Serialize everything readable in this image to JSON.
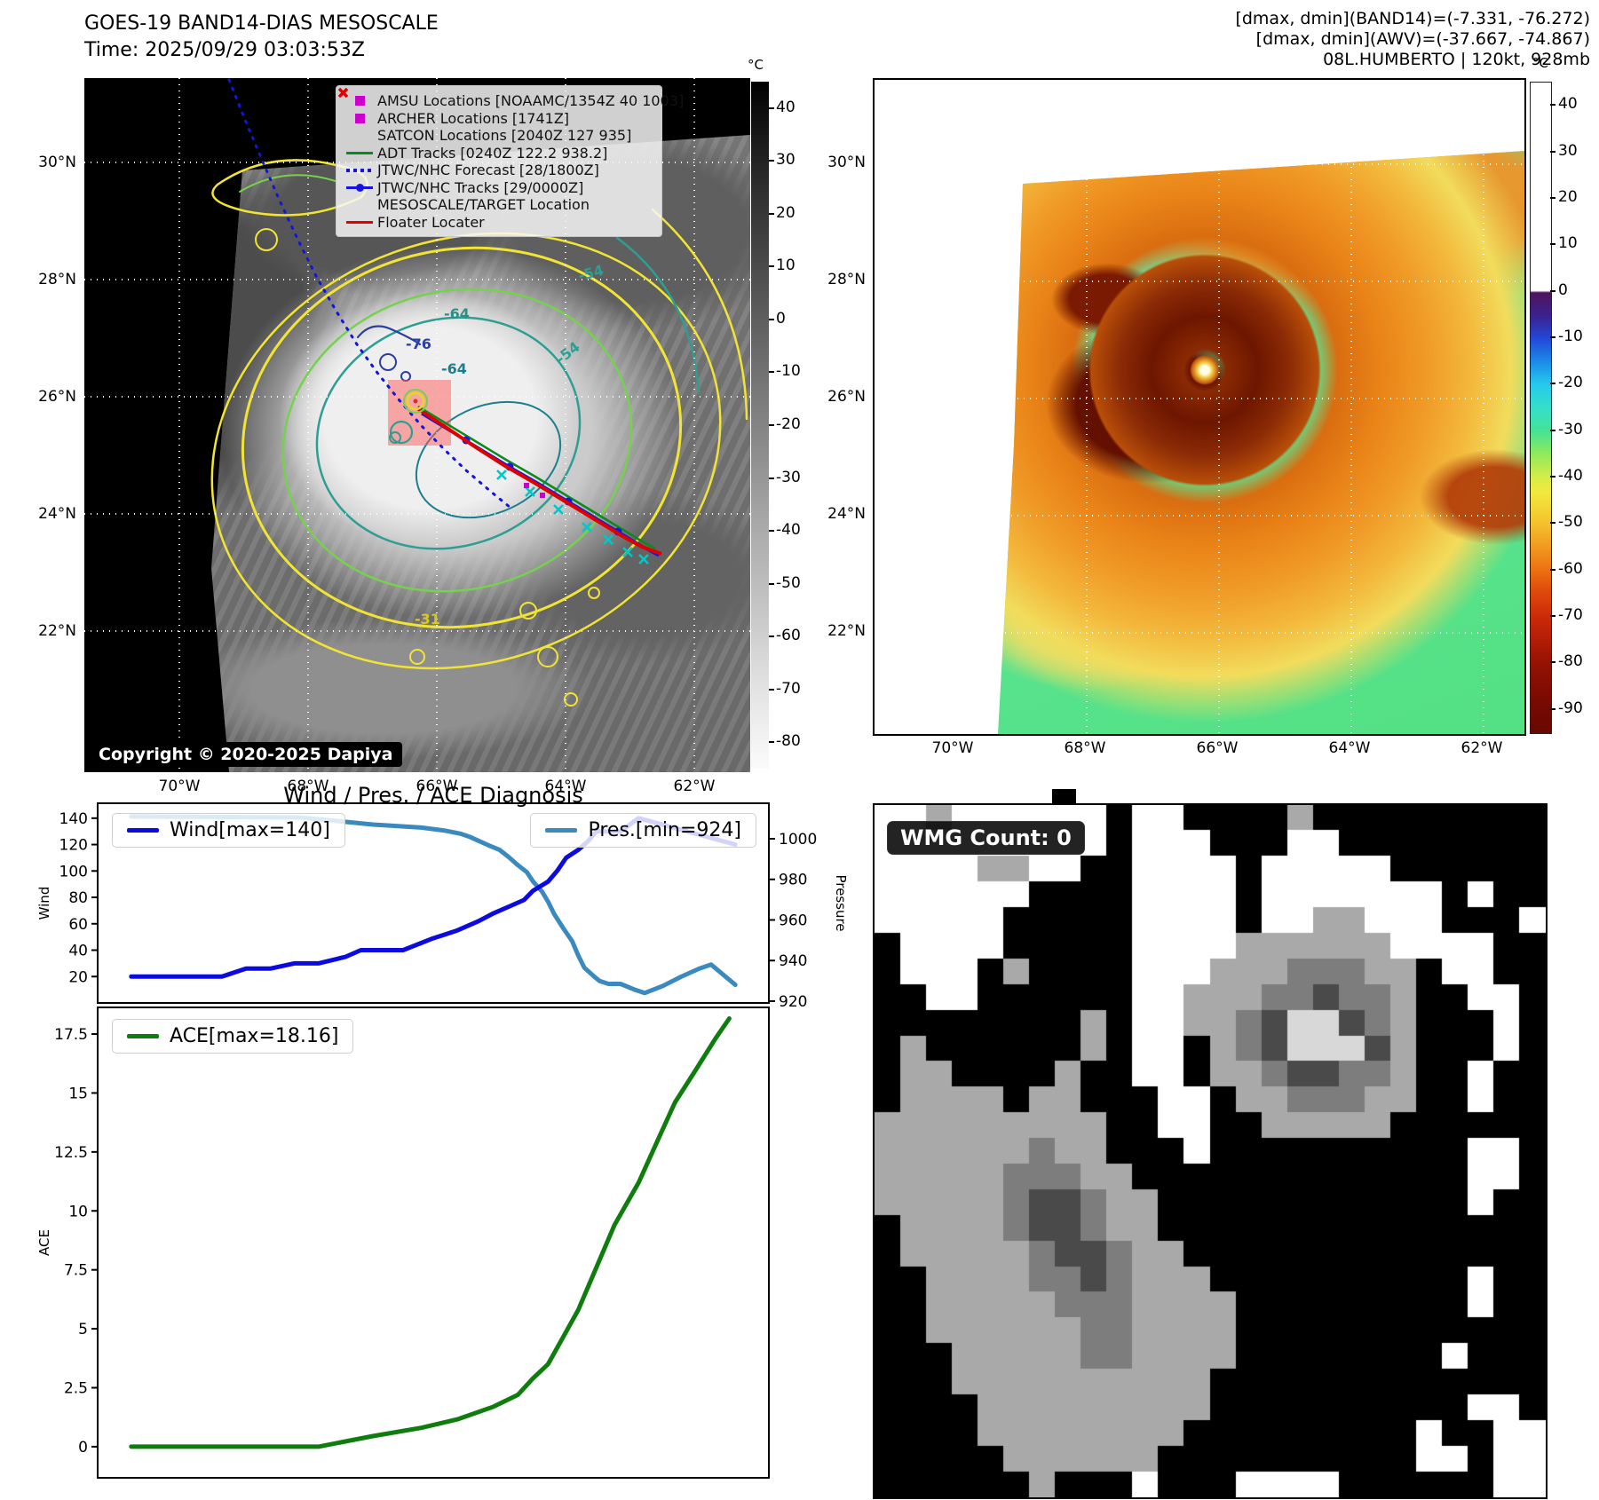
{
  "header": {
    "title_line1": "GOES-19 BAND14-DIAS MESOSCALE",
    "title_line2": "Time: 2025/09/29 03:03:53Z",
    "right_line1": "[dmax, dmin](BAND14)=(-7.331, -76.272)",
    "right_line2": "[dmax, dmin](AWV)=(-37.667, -74.867)",
    "right_line3": "08L.HUMBERTO | 120kt, 928mb"
  },
  "left_map": {
    "copyright": "Copyright © 2020-2025 Dapiya",
    "lat_labels": [
      "30°N",
      "28°N",
      "26°N",
      "24°N",
      "22°N"
    ],
    "lon_labels": [
      "70°W",
      "68°W",
      "66°W",
      "64°W",
      "62°W"
    ],
    "colorbar": {
      "unit": "°C",
      "ticks": [
        40,
        30,
        20,
        10,
        0,
        -10,
        -20,
        -30,
        -40,
        -50,
        -60,
        -70,
        -80
      ]
    },
    "legend": [
      {
        "marker": "magenta-square",
        "label": "AMSU Locations [NOAAMC/1354Z 40 1003]"
      },
      {
        "marker": "magenta-square",
        "label": "ARCHER Locations [1741Z]"
      },
      {
        "marker": "cyan-x",
        "label": "SATCON Locations [2040Z 127 935]"
      },
      {
        "marker": "green-line",
        "label": "ADT Tracks [0240Z 122.2 938.2]"
      },
      {
        "marker": "blue-dotted",
        "label": "JTWC/NHC Forecast [28/1800Z]"
      },
      {
        "marker": "blue-line-dot",
        "label": "JTWC/NHC Tracks [29/0000Z]"
      },
      {
        "marker": "red-x",
        "label": "MESOSCALE/TARGET Location"
      },
      {
        "marker": "red-line",
        "label": "Floater Locater"
      }
    ],
    "contour_labels": [
      "-64",
      "-76",
      "-64",
      "-54",
      "-54",
      "-31"
    ]
  },
  "right_map": {
    "lat_labels": [
      "30°N",
      "28°N",
      "26°N",
      "24°N",
      "22°N"
    ],
    "lon_labels": [
      "70°W",
      "68°W",
      "66°W",
      "64°W",
      "62°W"
    ],
    "colorbar": {
      "unit": "°C",
      "ticks": [
        40,
        30,
        20,
        10,
        0,
        -10,
        -20,
        -30,
        -40,
        -50,
        -60,
        -70,
        -80,
        -90
      ]
    }
  },
  "charts": {
    "title": "Wind / Pres. / ACE Diagnosis",
    "wind_legend": "Wind[max=140]",
    "pres_legend": "Pres.[min=924]",
    "ace_legend": "ACE[max=18.16]"
  },
  "chart_data": [
    {
      "type": "line",
      "title": "Wind / Pres. / ACE Diagnosis",
      "ylabel_left": "Wind",
      "ylabel_right": "Pressure",
      "yticks_left": [
        20,
        40,
        60,
        80,
        100,
        120,
        140
      ],
      "yticks_right": [
        920,
        940,
        960,
        980,
        1000
      ],
      "ylim_left": [
        0,
        151.3
      ],
      "ylim_right": [
        919.1,
        1017.5
      ],
      "series": [
        {
          "name": "Pres.[min=924]",
          "color": "#3a8ac0",
          "axis": "right",
          "points": [
            [
              0,
              1011
            ],
            [
              0.28,
              1010.5
            ],
            [
              0.35,
              1008.5
            ],
            [
              0.4,
              1007
            ],
            [
              0.43,
              1006.5
            ],
            [
              0.48,
              1005.5
            ],
            [
              0.52,
              1004
            ],
            [
              0.545,
              1002.5
            ],
            [
              0.56,
              1001
            ],
            [
              0.575,
              999
            ],
            [
              0.59,
              997
            ],
            [
              0.61,
              994.5
            ],
            [
              0.625,
              991
            ],
            [
              0.64,
              987
            ],
            [
              0.655,
              983.5
            ],
            [
              0.665,
              979
            ],
            [
              0.68,
              974
            ],
            [
              0.69,
              969
            ],
            [
              0.7,
              963
            ],
            [
              0.715,
              956
            ],
            [
              0.73,
              949.5
            ],
            [
              0.74,
              942.5
            ],
            [
              0.75,
              936.5
            ],
            [
              0.765,
              932.5
            ],
            [
              0.775,
              930
            ],
            [
              0.79,
              928.5
            ],
            [
              0.81,
              928.5
            ],
            [
              0.835,
              925.5
            ],
            [
              0.85,
              924
            ],
            [
              0.88,
              927.5
            ],
            [
              0.91,
              932
            ],
            [
              0.94,
              936
            ],
            [
              0.96,
              938
            ],
            [
              1,
              928
            ]
          ]
        },
        {
          "name": "Wind[max=140]",
          "color": "#0b0bdf",
          "axis": "left",
          "points": [
            [
              0,
              20
            ],
            [
              0.15,
              20
            ],
            [
              0.19,
              26
            ],
            [
              0.23,
              26
            ],
            [
              0.27,
              30
            ],
            [
              0.31,
              30
            ],
            [
              0.355,
              35
            ],
            [
              0.38,
              40
            ],
            [
              0.45,
              40
            ],
            [
              0.5,
              49
            ],
            [
              0.52,
              52
            ],
            [
              0.54,
              55
            ],
            [
              0.575,
              62
            ],
            [
              0.6,
              68
            ],
            [
              0.63,
              74
            ],
            [
              0.65,
              78
            ],
            [
              0.665,
              85
            ],
            [
              0.69,
              92
            ],
            [
              0.705,
              100
            ],
            [
              0.72,
              110
            ],
            [
              0.74,
              116
            ],
            [
              0.755,
              122
            ],
            [
              0.77,
              130
            ],
            [
              0.81,
              130
            ],
            [
              0.84,
              140
            ],
            [
              0.88,
              135
            ],
            [
              0.92,
              130
            ],
            [
              0.96,
              125
            ],
            [
              1,
              120
            ]
          ]
        }
      ]
    },
    {
      "type": "line",
      "ylabel": "ACE",
      "yticks": [
        0,
        2.5,
        5.0,
        7.5,
        10.0,
        12.5,
        15.0,
        17.5
      ],
      "ylim": [
        -1.32,
        18.63
      ],
      "series": [
        {
          "name": "ACE[max=18.16]",
          "color": "#0e7d0e",
          "points": [
            [
              0,
              0
            ],
            [
              0.31,
              0
            ],
            [
              0.4,
              0.45
            ],
            [
              0.48,
              0.8
            ],
            [
              0.54,
              1.16
            ],
            [
              0.6,
              1.7
            ],
            [
              0.64,
              2.2
            ],
            [
              0.665,
              2.9
            ],
            [
              0.69,
              3.5
            ],
            [
              0.714,
              4.6
            ],
            [
              0.74,
              5.8
            ],
            [
              0.77,
              7.6
            ],
            [
              0.8,
              9.4
            ],
            [
              0.84,
              11.2
            ],
            [
              0.87,
              12.9
            ],
            [
              0.9,
              14.6
            ],
            [
              0.935,
              16.0
            ],
            [
              0.967,
              17.3
            ],
            [
              0.99,
              18.16
            ]
          ]
        }
      ]
    }
  ],
  "wmg": {
    "label": "WMG Count: 0",
    "palette": {
      ".": "#000000",
      "W": "#ffffff",
      "G": "#a9a9a9",
      "M": "#7d7d7d",
      "D": "#4a4a4a",
      "L": "#d8d8d8",
      "E": "#ececec"
    },
    "grid": [
      "WWGWWWWWW.WW....G.........",
      "WWWWWWWWW.WWW...WW........",
      "WWWWGGWW..WWWW.WWWWW......",
      "WWWWWW....WWWW.WWWWWWW.W..",
      "WWWWW.....WWWW.WWGGWWW...W",
      ".WWWW.....WWWWGGGGGGWWWW..",
      ".WWW.G....WWWGGGMMMGG.WW..",
      "..WW......WWGGGMMDMMG..WW.",
      "........G.WWGGMDLLDMG...W.",
      ".G......G.WW.GMDLLLDG...W.",
      ".GG....G..WW.GGMDDMMG..W..",
      ".GGGG.GG...WW.GGMMMGG..W..",
      "GGGGGGGGG..WW..GGGGG......",
      "GGGGGGMGG...W..........WW.",
      "GGGGGMMMGG.............WW.",
      "GGGGGMDDMGG............W..",
      ".GGGGMDDMGG...............",
      ".GGGGGMDDMGG..............",
      "..GGGGMMDMGGG..........W..",
      "..GGGGGMMMGGGG.........W..",
      "..GGGGGGMMGGGG............",
      "...GGGGGMMGGGG........W...",
      "...GGGGGGGGGG.............",
      "....GGGGGGGGG..........WW.",
      "....GGGGGGGG.........W..WW",
      ".....GGGGGG..........WW.WW",
      "......G...W...WWWW......WW"
    ]
  },
  "colors": {
    "wind": "#0b0bdf",
    "pressure": "#3a8ac0",
    "ace": "#0e7d0e",
    "magenta": "#cc00cc",
    "cyan": "#00c2c2",
    "red": "#e00000",
    "forecast_blue": "#1414dd",
    "track_green": "#0d8a1f",
    "contour_yellow": "#f2e434",
    "contour_green": "#76d14e",
    "contour_teal": "#2e9e93",
    "contour_navy": "#2a3fa0"
  }
}
